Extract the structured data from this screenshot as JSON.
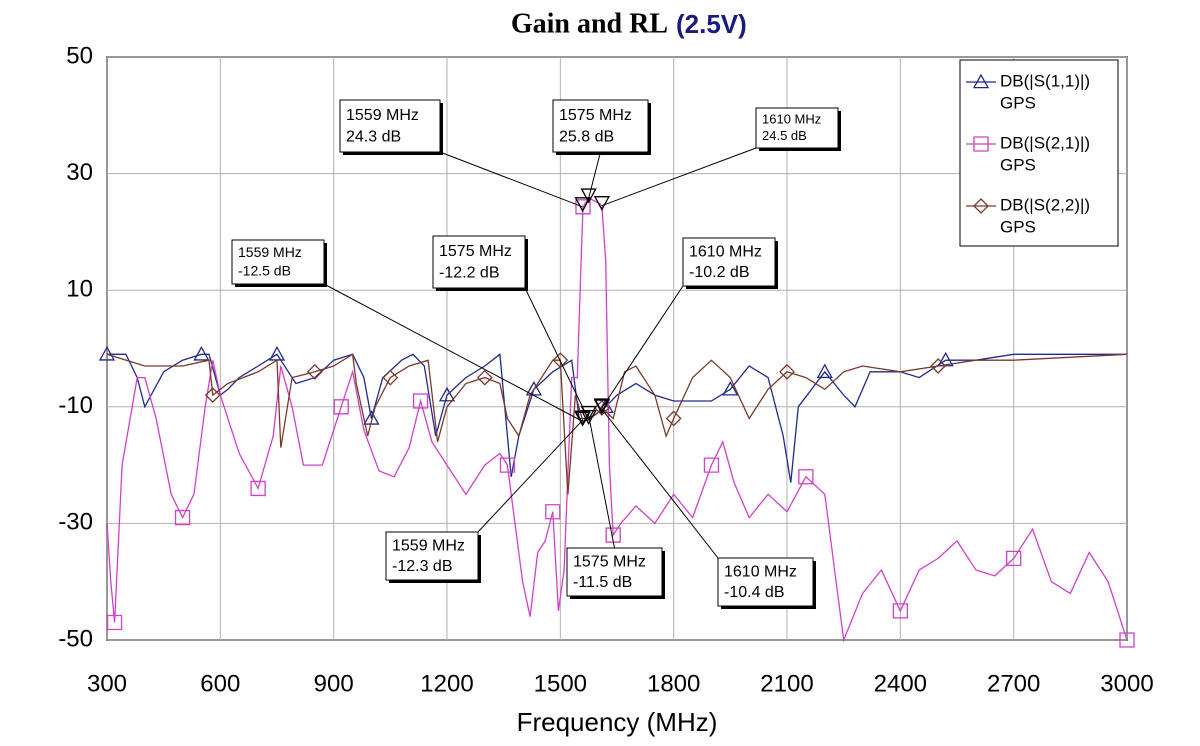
{
  "chart_data": {
    "type": "line",
    "title": "Gain and RL",
    "subtitle": "(2.5V)",
    "xlabel": "Frequency (MHz)",
    "xlim": [
      300,
      3000
    ],
    "xticks": [
      300,
      600,
      900,
      1200,
      1500,
      1800,
      2100,
      2400,
      2700,
      3000
    ],
    "ylim": [
      -50,
      50
    ],
    "yticks": [
      50,
      30,
      10,
      -10,
      -30,
      -50
    ],
    "grid": true,
    "legend": "upper right",
    "series": [
      {
        "name": "DB(|S(1,1)|)",
        "source": "GPS",
        "color": "#1f2a8c",
        "marker": "triangle",
        "x": [
          300,
          350,
          380,
          400,
          450,
          500,
          550,
          570,
          600,
          620,
          650,
          700,
          750,
          800,
          850,
          900,
          950,
          980,
          1000,
          1030,
          1080,
          1110,
          1140,
          1170,
          1200,
          1250,
          1300,
          1340,
          1370,
          1390,
          1430,
          1480,
          1530,
          1550,
          1575,
          1600,
          1620,
          1650,
          1700,
          1750,
          1800,
          1900,
          1950,
          2000,
          2050,
          2090,
          2110,
          2130,
          2200,
          2250,
          2280,
          2320,
          2400,
          2450,
          2520,
          2600,
          2700,
          2800,
          2900,
          3000
        ],
        "values": [
          -1,
          -1,
          -5,
          -10,
          -4,
          -2,
          -1,
          -1,
          -8,
          -7,
          -5,
          -3,
          -1,
          -6,
          -5,
          -2,
          -1,
          -5,
          -12,
          -5,
          -2,
          -1,
          -3,
          -15,
          -8,
          -5,
          -3,
          -1,
          -22,
          -15,
          -7,
          -4,
          -2,
          -12,
          -12,
          -11,
          -10,
          -8,
          -6,
          -8,
          -9,
          -9,
          -7,
          -3,
          -5,
          -15,
          -23,
          -10,
          -4,
          -8,
          -10,
          -4,
          -4,
          -5,
          -2,
          -2,
          -1,
          -1,
          -1,
          -1
        ]
      },
      {
        "name": "DB(|S(2,1)|)",
        "source": "GPS",
        "color": "#d040c8",
        "marker": "square",
        "x": [
          300,
          310,
          320,
          340,
          380,
          400,
          430,
          470,
          500,
          530,
          560,
          580,
          600,
          650,
          700,
          740,
          760,
          790,
          820,
          870,
          920,
          950,
          980,
          1020,
          1060,
          1100,
          1130,
          1160,
          1200,
          1250,
          1300,
          1340,
          1360,
          1380,
          1400,
          1420,
          1440,
          1460,
          1480,
          1495,
          1510,
          1530,
          1545,
          1555,
          1560,
          1575,
          1600,
          1610,
          1620,
          1630,
          1640,
          1660,
          1700,
          1750,
          1800,
          1850,
          1900,
          1930,
          1960,
          2000,
          2050,
          2100,
          2150,
          2200,
          2230,
          2250,
          2300,
          2350,
          2400,
          2450,
          2500,
          2550,
          2600,
          2650,
          2700,
          2750,
          2800,
          2850,
          2900,
          2950,
          3000
        ],
        "values": [
          -30,
          -40,
          -47,
          -20,
          -5,
          -5,
          -12,
          -25,
          -29,
          -25,
          -10,
          -2,
          -8,
          -18,
          -24,
          -15,
          -3,
          -10,
          -20,
          -20,
          -10,
          -4,
          -14,
          -21,
          -22,
          -17,
          -9,
          -16,
          -20,
          -25,
          -20,
          -18,
          -20,
          -30,
          -40,
          -46,
          -35,
          -33,
          -28,
          -45,
          -38,
          -5,
          -5,
          15,
          24.3,
          25.8,
          25,
          24.5,
          15,
          -20,
          -32,
          -30,
          -27,
          -30,
          -25,
          -29,
          -20,
          -16,
          -23,
          -29,
          -25,
          -28,
          -22,
          -25,
          -40,
          -50,
          -42,
          -38,
          -45,
          -38,
          -36,
          -33,
          -38,
          -39,
          -36,
          -31,
          -40,
          -42,
          -35,
          -40,
          -50
        ]
      },
      {
        "name": "DB(|S(2,2)|)",
        "source": "GPS",
        "color": "#7a3a2a",
        "marker": "diamond",
        "x": [
          300,
          400,
          500,
          570,
          580,
          620,
          700,
          750,
          760,
          790,
          850,
          900,
          950,
          960,
          990,
          1010,
          1050,
          1100,
          1150,
          1175,
          1200,
          1250,
          1300,
          1340,
          1360,
          1390,
          1420,
          1480,
          1500,
          1520,
          1540,
          1560,
          1575,
          1600,
          1610,
          1640,
          1670,
          1700,
          1750,
          1780,
          1800,
          1850,
          1900,
          1950,
          2000,
          2050,
          2100,
          2150,
          2200,
          2250,
          2300,
          2400,
          2500,
          2600,
          2700,
          3000
        ],
        "values": [
          -1,
          -3,
          -3,
          -2,
          -8,
          -6,
          -4,
          -2,
          -17,
          -5,
          -4,
          -3,
          -1,
          -6,
          -15,
          -10,
          -5,
          -3,
          -2,
          -16,
          -10,
          -6,
          -5,
          -6,
          -12,
          -15,
          -8,
          -2,
          -2,
          -25,
          -8,
          -12.5,
          -12.2,
          -11,
          -10.2,
          -12,
          -4,
          -3,
          -8,
          -15,
          -12,
          -5,
          -2,
          -5,
          -12,
          -7,
          -4,
          -5,
          -7,
          -4,
          -3,
          -4,
          -3,
          -2,
          -2,
          -1
        ]
      }
    ],
    "annotations": [
      {
        "x": 1559,
        "y": 24.3,
        "label": "1559 MHz",
        "value_label": "24.3 dB"
      },
      {
        "x": 1575,
        "y": 25.8,
        "label": "1575 MHz",
        "value_label": "25.8 dB"
      },
      {
        "x": 1610,
        "y": 24.5,
        "label": "1610 MHz",
        "value_label": "24.5 dB"
      },
      {
        "x": 1559,
        "y": -12.5,
        "label": "1559 MHz",
        "value_label": "-12.5 dB"
      },
      {
        "x": 1575,
        "y": -12.2,
        "label": "1575 MHz",
        "value_label": "-12.2 dB"
      },
      {
        "x": 1610,
        "y": -10.2,
        "label": "1610 MHz",
        "value_label": "-10.2 dB"
      },
      {
        "x": 1559,
        "y": -12.3,
        "label": "1559 MHz",
        "value_label": "-12.3 dB"
      },
      {
        "x": 1575,
        "y": -11.5,
        "label": "1575 MHz",
        "value_label": "-11.5 dB"
      },
      {
        "x": 1610,
        "y": -10.4,
        "label": "1610 MHz",
        "value_label": "-10.4 dB"
      }
    ]
  }
}
